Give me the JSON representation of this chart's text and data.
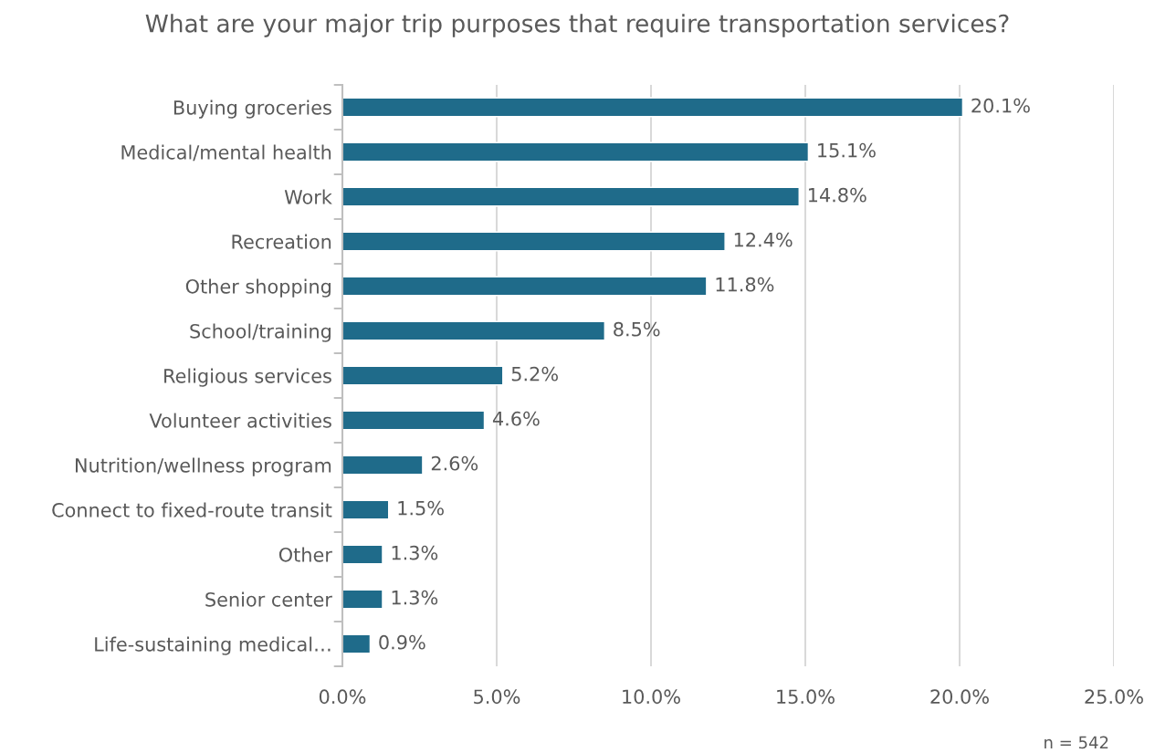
{
  "chart_data": {
    "type": "bar",
    "orientation": "horizontal",
    "title": "What are your major trip purposes that require transportation services?",
    "categories": [
      "Buying groceries",
      "Medical/mental health",
      "Work",
      "Recreation",
      "Other shopping",
      "School/training",
      "Religious services",
      "Volunteer activities",
      "Nutrition/wellness program",
      "Connect to fixed-route transit",
      "Other",
      "Senior center",
      "Life-sustaining medical…"
    ],
    "values": [
      20.1,
      15.1,
      14.8,
      12.4,
      11.8,
      8.5,
      5.2,
      4.6,
      2.6,
      1.5,
      1.3,
      1.3,
      0.9
    ],
    "value_labels": [
      "20.1%",
      "15.1%",
      "14.8%",
      "12.4%",
      "11.8%",
      "8.5%",
      "5.2%",
      "4.6%",
      "2.6%",
      "1.5%",
      "1.3%",
      "1.3%",
      "0.9%"
    ],
    "color": "#1f6b8a",
    "xlim": [
      0,
      25
    ],
    "xticks": [
      {
        "value": 0,
        "label": "0.0%"
      },
      {
        "value": 5,
        "label": "5.0%"
      },
      {
        "value": 10,
        "label": "10.0%"
      },
      {
        "value": 15,
        "label": "15.0%"
      },
      {
        "value": 20,
        "label": "20.0%"
      },
      {
        "value": 25,
        "label": "25.0%"
      }
    ],
    "grid": "x",
    "annotations": [
      "n = 542"
    ]
  }
}
